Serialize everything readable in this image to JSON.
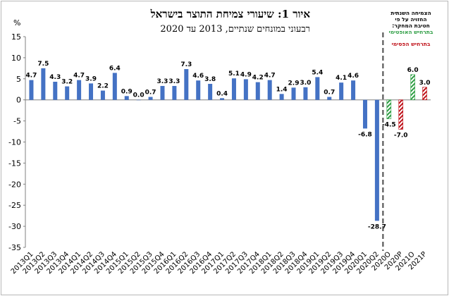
{
  "title": "איור 1: שיעורי צמיחת התוצר בישראל",
  "subtitle": "רבעוני במונחים שנתיים, 2013 עד 2020",
  "unit_label": "%",
  "legend": {
    "line1": "הצמיחה השנתית",
    "line2": "החזויה על פי",
    "line3": "חטיבת המחקר:",
    "line4": "בתרחיש",
    "optimistic": "האופטימי",
    "line5": "בתרחיש",
    "pessimistic": "הפסימי"
  },
  "colors": {
    "bar": "#4472c4",
    "optimistic": "#2e9e44",
    "pessimistic": "#c0121a",
    "divider": "#595959"
  },
  "chart_data": {
    "type": "bar",
    "unit": "%",
    "ylim": [
      -35,
      15
    ],
    "yticks": [
      -35,
      -30,
      -25,
      -20,
      -15,
      -10,
      -5,
      0,
      5,
      10,
      15
    ],
    "categories": [
      "2013Q1",
      "2013Q2",
      "2013Q3",
      "2013Q4",
      "2014Q1",
      "2014Q2",
      "2014Q3",
      "2014Q4",
      "2015Q1",
      "2015Q2",
      "2015Q3",
      "2015Q4",
      "2016Q1",
      "2016Q2",
      "2016Q3",
      "2016Q4",
      "2017Q1",
      "2017Q2",
      "2017Q3",
      "2017Q4",
      "2018Q1",
      "2018Q2",
      "2018Q3",
      "2018Q4",
      "2019Q1",
      "2019Q2",
      "2019Q3",
      "2019Q4",
      "2020Q1",
      "2020Q2",
      "2020O",
      "2020P",
      "2021O",
      "2021P"
    ],
    "values": [
      4.7,
      7.5,
      4.3,
      3.2,
      4.7,
      3.9,
      2.2,
      6.4,
      0.9,
      0.0,
      0.7,
      3.3,
      3.3,
      7.3,
      4.6,
      3.8,
      0.4,
      5.1,
      4.9,
      4.2,
      4.7,
      1.4,
      2.9,
      3.0,
      5.4,
      0.7,
      4.1,
      4.6,
      -6.8,
      -28.7,
      -4.5,
      -7.0,
      6.0,
      3.0
    ],
    "labels": [
      "4.7",
      "7.5",
      "4.3",
      "3.2",
      "4.7",
      "3.9",
      "2.2",
      "6.4",
      "0.9",
      "0.0",
      "0.7",
      "3.3",
      "3.3",
      "7.3",
      "4.6",
      "3.8",
      "0.4",
      "5.1",
      "4.9",
      "4.2",
      "4.7",
      "1.4",
      "2.9",
      "3.0",
      "5.4",
      "0.7",
      "4.1",
      "4.6",
      "-6.8",
      "-28.7",
      "-4.5",
      "-7.0",
      "6.0",
      "3.0"
    ],
    "bar_style": [
      "solid",
      "solid",
      "solid",
      "solid",
      "solid",
      "solid",
      "solid",
      "solid",
      "solid",
      "solid",
      "solid",
      "solid",
      "solid",
      "solid",
      "solid",
      "solid",
      "solid",
      "solid",
      "solid",
      "solid",
      "solid",
      "solid",
      "solid",
      "solid",
      "solid",
      "solid",
      "solid",
      "solid",
      "solid",
      "solid",
      "optimistic",
      "pessimistic",
      "optimistic",
      "pessimistic"
    ],
    "divider_after": "2020Q2",
    "grid": false,
    "legend_position": "top-right"
  }
}
